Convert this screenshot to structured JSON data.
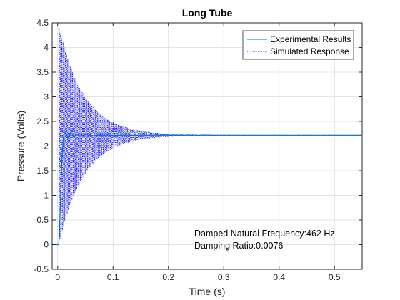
{
  "chart_data": {
    "type": "line",
    "title": "Long Tube",
    "xlabel": "Time (s)",
    "ylabel": "Pressure (Volts)",
    "xlim": [
      -0.01,
      0.55
    ],
    "ylim": [
      -0.5,
      4.5
    ],
    "xticks": [
      0,
      0.1,
      0.2,
      0.3,
      0.4,
      0.5
    ],
    "xticklabels": [
      "0",
      "0.1",
      "0.2",
      "0.3",
      "0.4",
      "0.5"
    ],
    "yticks": [
      -0.5,
      0,
      0.5,
      1,
      1.5,
      2,
      2.5,
      3,
      3.5,
      4,
      4.5
    ],
    "yticklabels": [
      "-0.5",
      "0",
      "0.5",
      "1",
      "1.5",
      "2",
      "2.5",
      "3",
      "3.5",
      "4",
      "4.5"
    ],
    "grid": true,
    "legend_location": "top-right",
    "series": [
      {
        "name": "Experimental Results",
        "style": "solid",
        "color": "#0072BD",
        "x": [
          -0.004,
          0.002,
          0.004,
          0.006,
          0.008,
          0.01,
          0.012,
          0.014,
          0.016,
          0.018,
          0.02,
          0.022,
          0.024,
          0.026,
          0.028,
          0.03,
          0.032,
          0.034,
          0.036,
          0.04,
          0.045,
          0.05,
          0.06,
          0.08,
          0.12,
          0.2,
          0.3,
          0.4,
          0.5,
          0.55
        ],
        "y": [
          0,
          0,
          0.5,
          1.2,
          1.8,
          2.15,
          2.28,
          2.29,
          2.25,
          2.18,
          2.16,
          2.22,
          2.27,
          2.25,
          2.19,
          2.18,
          2.22,
          2.25,
          2.23,
          2.2,
          2.22,
          2.24,
          2.21,
          2.22,
          2.22,
          2.22,
          2.22,
          2.22,
          2.22,
          2.22
        ]
      },
      {
        "name": "Simulated Response",
        "style": "dotted",
        "color": "#0000FF",
        "model": {
          "start_time": 0.002,
          "step_value": 2.22,
          "damped_natural_frequency_hz": 462,
          "damping_ratio": 0.0076
        }
      }
    ],
    "annotations": [
      "Damped Natural Frequency:462 Hz",
      "Damping Ratio:0.0076"
    ]
  }
}
